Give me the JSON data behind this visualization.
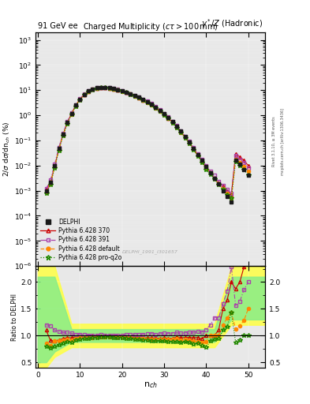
{
  "title_top_left": "91 GeV ee",
  "title_top_right": "γ*/Z (Hadronic)",
  "plot_title": "Charged Multiplicity",
  "plot_title2": "(cτ > 100mm)",
  "ylabel_main": "2/σ dσ/dn_{ch} (%)",
  "ylabel_ratio": "Ratio to DELPHI",
  "xlabel": "n_{ch}",
  "watermark": "DELPHI_1991_I301657",
  "right_label": "Rivet 3.1.10, ≥ 3M events",
  "right_label2": "mcplots.cern.ch [arXiv:1306.3436]",
  "ylim_main": [
    1e-06,
    2000
  ],
  "ylim_ratio": [
    0.4,
    2.3
  ],
  "xlim": [
    -0.5,
    54
  ],
  "nch_values": [
    2,
    3,
    4,
    5,
    6,
    7,
    8,
    9,
    10,
    11,
    12,
    13,
    14,
    15,
    16,
    17,
    18,
    19,
    20,
    21,
    22,
    23,
    24,
    25,
    26,
    27,
    28,
    29,
    30,
    31,
    32,
    33,
    34,
    35,
    36,
    37,
    38,
    39,
    40,
    41,
    42,
    43,
    44,
    45,
    46,
    47,
    48,
    49,
    50
  ],
  "delphi_data": [
    0.001,
    0.0022,
    0.01,
    0.048,
    0.18,
    0.52,
    1.2,
    2.5,
    4.4,
    6.8,
    9.2,
    11.0,
    12.2,
    12.8,
    12.8,
    12.2,
    11.4,
    10.5,
    9.4,
    8.3,
    7.2,
    6.2,
    5.2,
    4.3,
    3.5,
    2.8,
    2.1,
    1.6,
    1.15,
    0.82,
    0.56,
    0.36,
    0.23,
    0.14,
    0.085,
    0.05,
    0.028,
    0.016,
    0.009,
    0.005,
    0.003,
    0.0018,
    0.001,
    0.0006,
    0.00035,
    0.016,
    0.011,
    0.007,
    0.004
  ],
  "pythia370_data": [
    0.0011,
    0.002,
    0.009,
    0.044,
    0.17,
    0.5,
    1.15,
    2.45,
    4.3,
    6.6,
    9.0,
    10.8,
    12.0,
    12.7,
    12.7,
    12.1,
    11.2,
    10.3,
    9.2,
    8.1,
    7.0,
    6.0,
    5.0,
    4.1,
    3.35,
    2.68,
    2.0,
    1.52,
    1.1,
    0.78,
    0.53,
    0.35,
    0.22,
    0.135,
    0.082,
    0.048,
    0.027,
    0.015,
    0.009,
    0.005,
    0.003,
    0.002,
    0.0015,
    0.001,
    0.0007,
    0.03,
    0.022,
    0.016,
    0.01
  ],
  "pythia391_data": [
    0.0012,
    0.0026,
    0.011,
    0.052,
    0.19,
    0.55,
    1.25,
    2.55,
    4.5,
    6.9,
    9.3,
    11.1,
    12.3,
    13.0,
    12.9,
    12.3,
    11.5,
    10.6,
    9.5,
    8.4,
    7.3,
    6.3,
    5.3,
    4.4,
    3.6,
    2.9,
    2.15,
    1.65,
    1.2,
    0.85,
    0.58,
    0.38,
    0.24,
    0.147,
    0.09,
    0.053,
    0.03,
    0.017,
    0.01,
    0.006,
    0.004,
    0.0024,
    0.0016,
    0.0011,
    0.0008,
    0.025,
    0.018,
    0.013,
    0.008
  ],
  "pythia_default_data": [
    0.00085,
    0.0018,
    0.009,
    0.043,
    0.165,
    0.48,
    1.1,
    2.38,
    4.2,
    6.5,
    8.8,
    10.6,
    11.8,
    12.5,
    12.5,
    11.9,
    11.1,
    10.2,
    9.1,
    8.0,
    6.9,
    5.9,
    4.95,
    4.05,
    3.28,
    2.62,
    1.96,
    1.48,
    1.07,
    0.76,
    0.52,
    0.34,
    0.21,
    0.13,
    0.078,
    0.045,
    0.025,
    0.014,
    0.008,
    0.005,
    0.003,
    0.0018,
    0.0012,
    0.0008,
    0.0005,
    0.018,
    0.013,
    0.009,
    0.006
  ],
  "pythia_proq2o_data": [
    0.0008,
    0.0017,
    0.008,
    0.04,
    0.155,
    0.46,
    1.05,
    2.3,
    4.1,
    6.4,
    8.7,
    10.5,
    11.7,
    12.4,
    12.4,
    11.8,
    11.0,
    10.1,
    9.0,
    7.9,
    6.8,
    5.8,
    4.85,
    3.95,
    3.2,
    2.54,
    1.9,
    1.43,
    1.03,
    0.73,
    0.5,
    0.32,
    0.2,
    0.123,
    0.074,
    0.042,
    0.024,
    0.013,
    0.007,
    0.0045,
    0.0028,
    0.0017,
    0.0011,
    0.0007,
    0.0005,
    0.014,
    0.01,
    0.007,
    0.004
  ],
  "color_delphi": "#1a1a1a",
  "color_370": "#cc0000",
  "color_391": "#aa44aa",
  "color_default": "#ff8800",
  "color_proq2o": "#228800",
  "color_yellow_band": "#ffff44",
  "color_green_band": "#88ee88",
  "legend_labels": [
    "DELPHI",
    "Pythia 6.428 370",
    "Pythia 6.428 391",
    "Pythia 6.428 default",
    "Pythia 6.428 pro-q2o"
  ],
  "xticks": [
    0,
    10,
    20,
    30,
    40,
    50
  ],
  "yticks_ratio": [
    0.5,
    1.0,
    1.5,
    2.0
  ]
}
